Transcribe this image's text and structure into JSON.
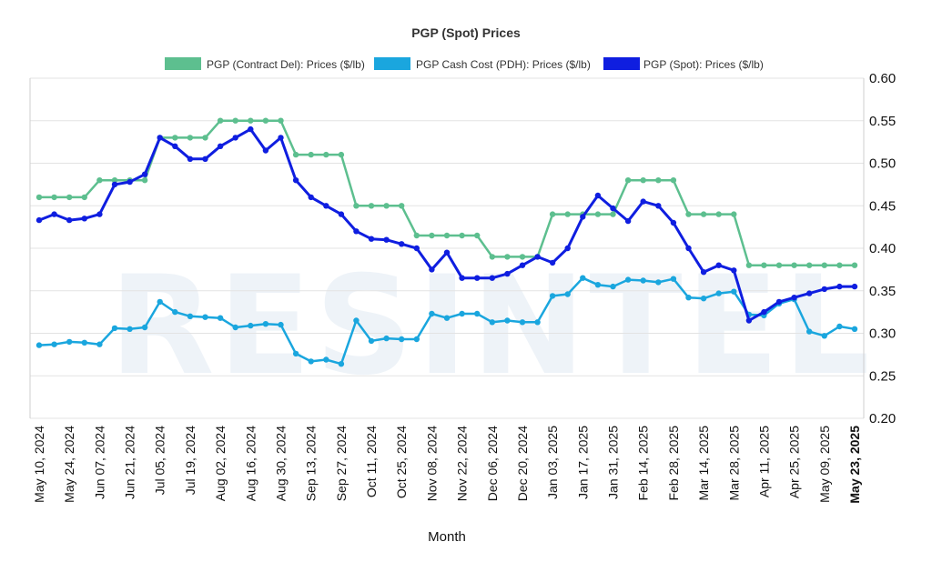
{
  "chart_data": {
    "type": "line",
    "title": "PGP (Spot) Prices",
    "xlabel": "Month",
    "ylabel": "",
    "ylim": [
      0.2,
      0.6
    ],
    "yticks": [
      "0.20",
      "0.25",
      "0.30",
      "0.35",
      "0.40",
      "0.45",
      "0.50",
      "0.55",
      "0.60"
    ],
    "y_axis_side": "right",
    "grid": true,
    "legend_position": "top",
    "watermark": "RESINTEL",
    "x": [
      "May 10, 2024",
      "May 17, 2024",
      "May 24, 2024",
      "May 31, 2024",
      "Jun 07, 2024",
      "Jun 14, 2024",
      "Jun 21, 2024",
      "Jun 28, 2024",
      "Jul 05, 2024",
      "Jul 12, 2024",
      "Jul 19, 2024",
      "Jul 26, 2024",
      "Aug 02, 2024",
      "Aug 09, 2024",
      "Aug 16, 2024",
      "Aug 23, 2024",
      "Aug 30, 2024",
      "Sep 06, 2024",
      "Sep 13, 2024",
      "Sep 20, 2024",
      "Sep 27, 2024",
      "Oct 04, 2024",
      "Oct 11, 2024",
      "Oct 18, 2024",
      "Oct 25, 2024",
      "Nov 01, 2024",
      "Nov 08, 2024",
      "Nov 15, 2024",
      "Nov 22, 2024",
      "Nov 29, 2024",
      "Dec 06, 2024",
      "Dec 13, 2024",
      "Dec 20, 2024",
      "Dec 27, 2024",
      "Jan 03, 2025",
      "Jan 10, 2025",
      "Jan 17, 2025",
      "Jan 24, 2025",
      "Jan 31, 2025",
      "Feb 07, 2025",
      "Feb 14, 2025",
      "Feb 21, 2025",
      "Feb 28, 2025",
      "Mar 07, 2025",
      "Mar 14, 2025",
      "Mar 21, 2025",
      "Mar 28, 2025",
      "Apr 04, 2025",
      "Apr 11, 2025",
      "Apr 18, 2025",
      "Apr 25, 2025",
      "May 02, 2025",
      "May 09, 2025",
      "May 16, 2025",
      "May 23, 2025"
    ],
    "x_tick_labels": [
      "May 10, 2024",
      "May 24, 2024",
      "Jun 07, 2024",
      "Jun 21, 2024",
      "Jul 05, 2024",
      "Jul 19, 2024",
      "Aug 02, 2024",
      "Aug 16, 2024",
      "Aug 30, 2024",
      "Sep 13, 2024",
      "Sep 27, 2024",
      "Oct 11, 2024",
      "Oct 25, 2024",
      "Nov 08, 2024",
      "Nov 22, 2024",
      "Dec 06, 2024",
      "Dec 20, 2024",
      "Jan 03, 2025",
      "Jan 17, 2025",
      "Jan 31, 2025",
      "Feb 14, 2025",
      "Feb 28, 2025",
      "Mar 14, 2025",
      "Mar 28, 2025",
      "Apr 11, 2025",
      "Apr 25, 2025",
      "May 09, 2025",
      "May 23, 2025"
    ],
    "series": [
      {
        "name": "PGP (Contract Del): Prices ($/lb)",
        "color": "#5dbf8f",
        "values": [
          0.46,
          0.46,
          0.46,
          0.46,
          0.48,
          0.48,
          0.48,
          0.48,
          0.53,
          0.53,
          0.53,
          0.53,
          0.55,
          0.55,
          0.55,
          0.55,
          0.55,
          0.51,
          0.51,
          0.51,
          0.51,
          0.45,
          0.45,
          0.45,
          0.45,
          0.415,
          0.415,
          0.415,
          0.415,
          0.415,
          0.39,
          0.39,
          0.39,
          0.39,
          0.44,
          0.44,
          0.44,
          0.44,
          0.44,
          0.48,
          0.48,
          0.48,
          0.48,
          0.44,
          0.44,
          0.44,
          0.44,
          0.38,
          0.38,
          0.38,
          0.38,
          0.38,
          0.38,
          0.38,
          0.38
        ]
      },
      {
        "name": "PGP Cash Cost (PDH): Prices ($/lb)",
        "color": "#1aa6de",
        "values": [
          0.286,
          0.287,
          0.29,
          0.289,
          0.287,
          0.306,
          0.305,
          0.307,
          0.337,
          0.325,
          0.32,
          0.319,
          0.318,
          0.307,
          0.309,
          0.311,
          0.31,
          0.276,
          0.267,
          0.269,
          0.264,
          0.315,
          0.291,
          0.294,
          0.293,
          0.293,
          0.323,
          0.318,
          0.323,
          0.323,
          0.313,
          0.315,
          0.313,
          0.313,
          0.344,
          0.346,
          0.365,
          0.357,
          0.355,
          0.363,
          0.362,
          0.36,
          0.364,
          0.342,
          0.341,
          0.347,
          0.349,
          0.322,
          0.321,
          0.335,
          0.34,
          0.302,
          0.297,
          0.308,
          0.305
        ]
      },
      {
        "name": "PGP (Spot): Prices ($/lb)",
        "color": "#0f1ee0",
        "values": [
          0.433,
          0.44,
          0.433,
          0.435,
          0.44,
          0.475,
          0.478,
          0.487,
          0.53,
          0.52,
          0.505,
          0.505,
          0.52,
          0.53,
          0.54,
          0.515,
          0.53,
          0.48,
          0.46,
          0.45,
          0.44,
          0.42,
          0.411,
          0.41,
          0.405,
          0.4,
          0.375,
          0.395,
          0.365,
          0.365,
          0.365,
          0.37,
          0.38,
          0.39,
          0.383,
          0.4,
          0.437,
          0.462,
          0.447,
          0.432,
          0.455,
          0.45,
          0.43,
          0.4,
          0.372,
          0.38,
          0.374,
          0.315,
          0.325,
          0.337,
          0.342,
          0.347,
          0.352,
          0.355,
          0.355
        ]
      }
    ]
  }
}
